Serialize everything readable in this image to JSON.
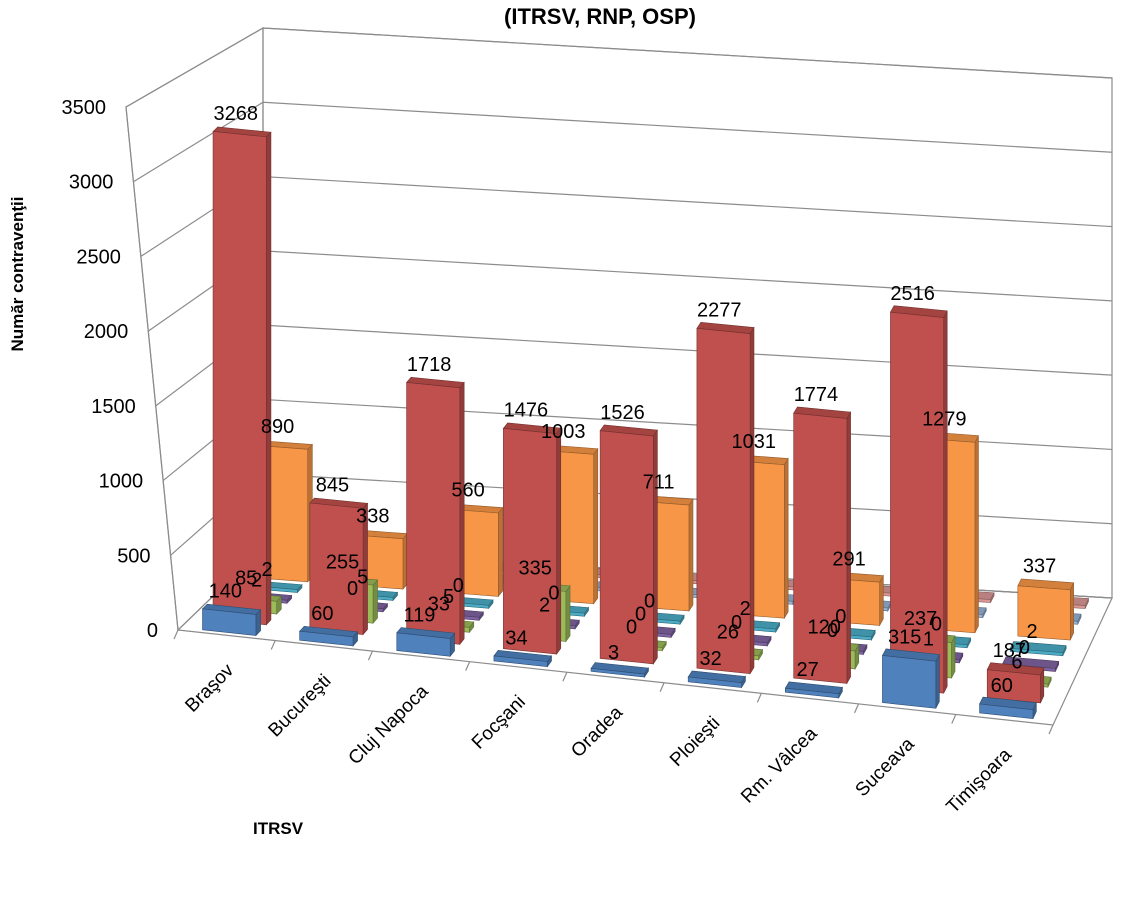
{
  "chart_data": {
    "type": "bar",
    "title": "(ITRSV, RNP, OSP)",
    "xlabel": "ITRSV",
    "ylabel": "Număr contravenţii",
    "ylim": [
      0,
      3500
    ],
    "yticks": [
      0,
      500,
      1000,
      1500,
      2000,
      2500,
      3000,
      3500
    ],
    "grid": true,
    "legend": "none",
    "categories": [
      "Braşov",
      "Bucureşti",
      "Cluj Napoca",
      "Focşani",
      "Oradea",
      "Ploieşti",
      "Rm. Vâlcea",
      "Suceava",
      "Timişoara"
    ],
    "series": [
      {
        "color": "#4f81bd",
        "values": [
          140,
          60,
          119,
          34,
          3,
          32,
          27,
          315,
          60
        ]
      },
      {
        "color": "#c0504d",
        "values": [
          3268,
          845,
          1718,
          1476,
          1526,
          2277,
          1774,
          2516,
          187
        ]
      },
      {
        "color": "#9bbb59",
        "values": [
          85,
          255,
          33,
          335,
          0,
          26,
          120,
          237,
          6
        ]
      },
      {
        "color": "#8064a2",
        "values": [
          2,
          0,
          5,
          2,
          0,
          0,
          0,
          1,
          0
        ]
      },
      {
        "color": "#4bacc6",
        "values": [
          2,
          5,
          0,
          0,
          0,
          2,
          0,
          0,
          2
        ]
      },
      {
        "color": "#f79646",
        "values": [
          890,
          338,
          560,
          1003,
          711,
          1031,
          291,
          1279,
          337
        ]
      },
      {
        "color": "#95b3d7",
        "values": [
          0,
          0,
          0,
          0,
          0,
          0,
          0,
          0,
          0
        ]
      },
      {
        "color": "#d99694",
        "values": [
          0,
          0,
          0,
          0,
          0,
          0,
          0,
          0,
          0
        ]
      }
    ]
  }
}
